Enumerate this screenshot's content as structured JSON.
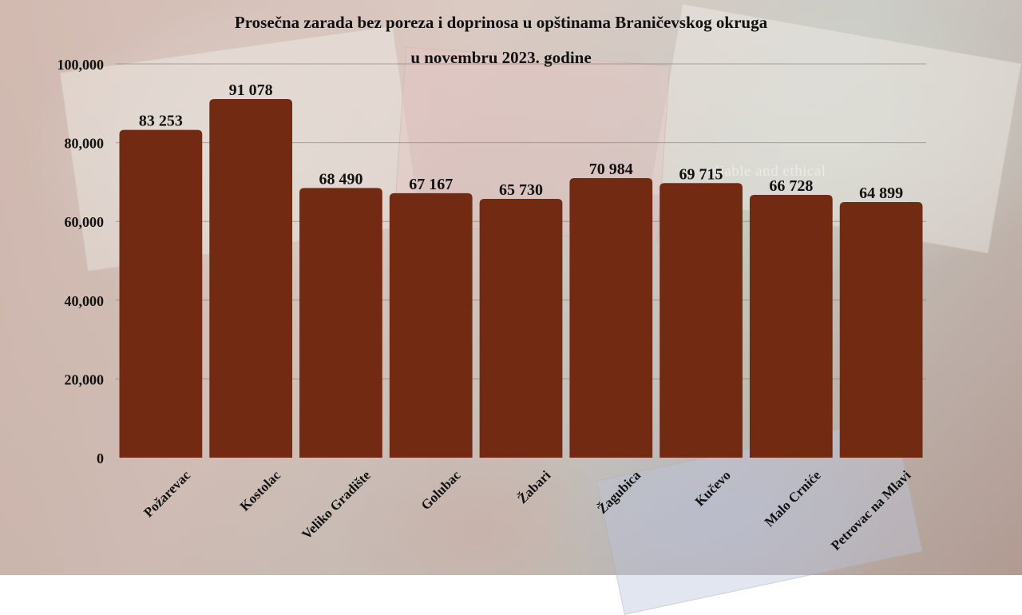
{
  "chart_data": {
    "type": "bar",
    "title_line1": "Prosečna zarada bez poreza i doprinosa u opštinama Braničevskog okruga",
    "title_line2": "u novembru 2023. godine",
    "xlabel": "",
    "ylabel": "",
    "ylim": [
      0,
      100000
    ],
    "yticks": [
      0,
      20000,
      40000,
      60000,
      80000,
      100000
    ],
    "ytick_labels": [
      "0",
      "20,000",
      "40,000",
      "60,000",
      "80,000",
      "100,000"
    ],
    "grid": true,
    "categories": [
      "Požarevac",
      "Kostolac",
      "Veliko Gradište",
      "Golubac",
      "Žabari",
      "Žagubica",
      "Kučevo",
      "Malo Crniće",
      "Petrovac na Mlavi"
    ],
    "values": [
      83253,
      91078,
      68490,
      67167,
      65730,
      70984,
      69715,
      66728,
      64899
    ],
    "value_labels": [
      "83 253",
      "91 078",
      "68 490",
      "67 167",
      "65 730",
      "70 984",
      "69 715",
      "66 728",
      "64 899"
    ],
    "bar_color": "#722b12",
    "watermark": "reliable and ethical"
  }
}
